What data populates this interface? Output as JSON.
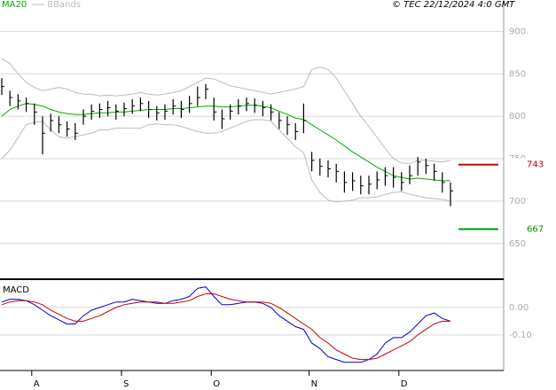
{
  "chart_data": [
    {
      "type": "ohlc",
      "source": "© TEC 22/12/2024 4:0 GMT",
      "ylim": [
        609,
        937
      ],
      "yticks": [
        650,
        700,
        750,
        800,
        850,
        900
      ],
      "grid": true,
      "high": [
        845,
        830,
        826,
        822,
        815,
        800,
        803,
        800,
        794,
        792,
        808,
        814,
        815,
        818,
        814,
        816,
        820,
        822,
        818,
        812,
        814,
        820,
        818,
        824,
        835,
        838,
        822,
        808,
        814,
        820,
        822,
        821,
        818,
        814,
        805,
        800,
        792,
        815,
        758,
        750,
        748,
        744,
        735,
        734,
        730,
        730,
        735,
        740,
        740,
        734,
        742,
        752,
        750,
        744,
        734,
        722
      ],
      "low": [
        825,
        812,
        808,
        805,
        790,
        755,
        782,
        780,
        776,
        772,
        790,
        796,
        798,
        800,
        796,
        800,
        803,
        806,
        798,
        795,
        796,
        802,
        798,
        804,
        812,
        820,
        795,
        785,
        796,
        802,
        806,
        804,
        800,
        795,
        785,
        778,
        772,
        780,
        735,
        730,
        728,
        722,
        710,
        712,
        708,
        708,
        714,
        718,
        716,
        712,
        720,
        730,
        732,
        724,
        710,
        694
      ],
      "close": [
        835,
        822,
        818,
        815,
        805,
        780,
        795,
        790,
        785,
        780,
        800,
        806,
        808,
        810,
        806,
        809,
        812,
        815,
        808,
        804,
        806,
        812,
        808,
        815,
        822,
        832,
        805,
        797,
        806,
        812,
        815,
        813,
        810,
        805,
        795,
        790,
        782,
        795,
        748,
        741,
        738,
        735,
        722,
        724,
        718,
        720,
        725,
        730,
        728,
        722,
        730,
        746,
        742,
        735,
        722,
        712
      ],
      "series": [
        {
          "name": "MA20",
          "color": "#00aa00",
          "values": [
            800,
            808,
            812,
            815,
            814,
            812,
            808,
            805,
            803,
            802,
            802,
            803,
            804,
            804,
            805,
            805,
            806,
            807,
            808,
            808,
            808,
            809,
            809,
            810,
            811,
            812,
            812,
            811,
            811,
            812,
            813,
            813,
            812,
            810,
            806,
            802,
            798,
            796,
            790,
            784,
            778,
            772,
            765,
            758,
            752,
            746,
            740,
            735,
            730,
            728,
            726,
            727,
            726,
            725,
            724,
            724
          ]
        },
        {
          "name": "BBands",
          "color": "#bbbbbb",
          "upper": [
            868,
            862,
            850,
            840,
            834,
            830,
            832,
            834,
            832,
            828,
            826,
            826,
            824,
            825,
            824,
            825,
            826,
            828,
            826,
            825,
            826,
            828,
            830,
            835,
            840,
            845,
            844,
            840,
            836,
            834,
            832,
            830,
            828,
            826,
            828,
            830,
            832,
            835,
            855,
            858,
            855,
            845,
            830,
            815,
            800,
            788,
            775,
            762,
            750,
            745,
            744,
            748,
            748,
            747,
            746,
            748
          ],
          "lower": [
            750,
            760,
            775,
            790,
            793,
            794,
            784,
            776,
            774,
            776,
            778,
            780,
            784,
            784,
            786,
            786,
            786,
            786,
            790,
            791,
            790,
            790,
            788,
            785,
            782,
            780,
            780,
            782,
            786,
            790,
            794,
            796,
            796,
            794,
            784,
            774,
            764,
            757,
            725,
            710,
            701,
            699,
            700,
            701,
            704,
            704,
            705,
            708,
            710,
            711,
            708,
            706,
            704,
            703,
            702,
            700
          ]
        }
      ],
      "annotations": [
        {
          "value": 743,
          "color": "#cc0000"
        },
        {
          "value": 667,
          "color": "#009900"
        }
      ]
    },
    {
      "type": "line",
      "title": "MACD",
      "categories": [
        null,
        null,
        null,
        null,
        "A",
        null,
        null,
        null,
        null,
        null,
        null,
        null,
        null,
        null,
        null,
        "S",
        null,
        null,
        null,
        null,
        null,
        null,
        null,
        null,
        null,
        null,
        "O",
        null,
        null,
        null,
        null,
        null,
        null,
        null,
        null,
        null,
        null,
        null,
        "N",
        null,
        null,
        null,
        null,
        null,
        null,
        null,
        null,
        null,
        null,
        "D",
        null,
        null,
        null,
        null,
        null,
        null
      ],
      "ylim": [
        -0.23,
        0.1
      ],
      "yticks": [
        {
          "value": 0,
          "label": "0.00"
        },
        {
          "value": -0.1,
          "label": "-0.10"
        }
      ],
      "grid": true,
      "series": [
        {
          "color": "#0000cc",
          "values": [
            0.02,
            0.03,
            0.03,
            0.025,
            0.01,
            -0.01,
            -0.03,
            -0.045,
            -0.06,
            -0.06,
            -0.03,
            -0.01,
            0,
            0.01,
            0.02,
            0.02,
            0.03,
            0.025,
            0.02,
            0.015,
            0.015,
            0.025,
            0.03,
            0.04,
            0.07,
            0.075,
            0.04,
            0.01,
            0.01,
            0.015,
            0.02,
            0.02,
            0.015,
            0,
            -0.03,
            -0.05,
            -0.07,
            -0.08,
            -0.13,
            -0.15,
            -0.18,
            -0.19,
            -0.2,
            -0.2,
            -0.2,
            -0.19,
            -0.17,
            -0.13,
            -0.11,
            -0.11,
            -0.09,
            -0.06,
            -0.03,
            -0.02,
            -0.04,
            -0.05
          ]
        },
        {
          "color": "#cc0000",
          "values": [
            0.01,
            0.02,
            0.025,
            0.025,
            0.02,
            0.01,
            -0.01,
            -0.025,
            -0.04,
            -0.05,
            -0.05,
            -0.04,
            -0.03,
            -0.015,
            0,
            0.01,
            0.015,
            0.02,
            0.02,
            0.02,
            0.015,
            0.015,
            0.02,
            0.025,
            0.04,
            0.05,
            0.05,
            0.04,
            0.03,
            0.025,
            0.02,
            0.02,
            0.02,
            0.015,
            0,
            -0.02,
            -0.04,
            -0.06,
            -0.08,
            -0.11,
            -0.13,
            -0.155,
            -0.17,
            -0.185,
            -0.19,
            -0.19,
            -0.185,
            -0.17,
            -0.155,
            -0.14,
            -0.125,
            -0.1,
            -0.08,
            -0.06,
            -0.05,
            -0.05
          ]
        }
      ]
    }
  ]
}
